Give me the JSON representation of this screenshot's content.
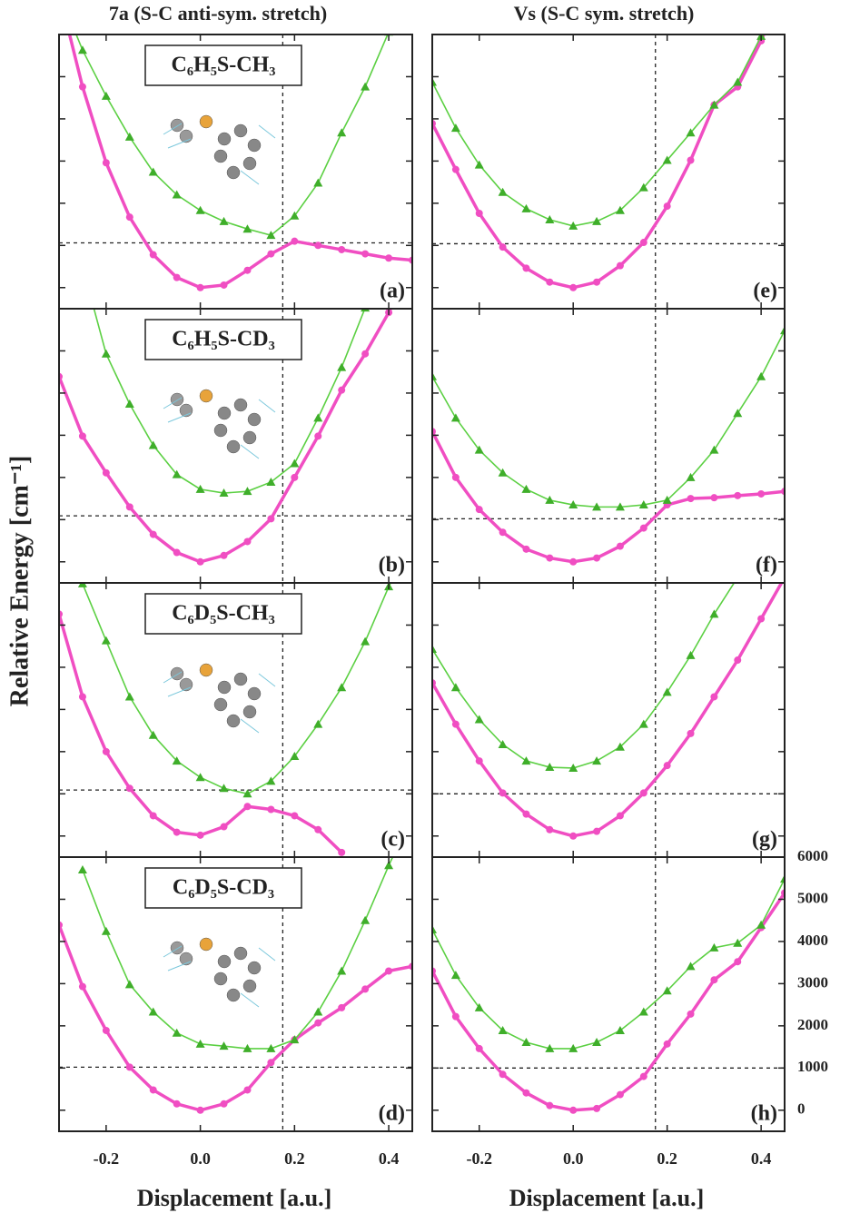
{
  "figure": {
    "column_titles": [
      "7a (S-C anti-sym. stretch)",
      "Vs (S-C sym. stretch)"
    ],
    "ylabel": "Relative Energy [cm⁻¹]",
    "xlabel": "Displacement [a.u.]"
  },
  "chart_data": [
    {
      "type": "line",
      "label": "(a)",
      "molecule": "C₆H₅S-CH₃",
      "x": [
        -0.3,
        -0.25,
        -0.2,
        -0.15,
        -0.1,
        -0.05,
        0,
        0.05,
        0.1,
        0.15,
        0.2,
        0.25,
        0.3,
        0.35,
        0.4,
        0.45
      ],
      "xlim": [
        -0.3,
        0.45
      ],
      "ylim": [
        -500,
        6000
      ],
      "xticks": [
        -0.2,
        {
          "value": 0,
          "label": "0.0"
        },
        0.2,
        0.4
      ],
      "yticks": [
        0,
        1000,
        2000,
        3000,
        4000,
        5000,
        6000
      ],
      "hline": 1060,
      "vline": 0.175,
      "series": [
        {
          "color": "#f04ec2",
          "marker": "circle",
          "values": [
            7000,
            4760,
            2960,
            1670,
            780,
            240,
            0,
            60,
            410,
            800,
            1100,
            1000,
            900,
            800,
            700,
            650
          ]
        },
        {
          "color": "#5cd043",
          "marker": "triangle",
          "values": [
            7000,
            5630,
            4540,
            3570,
            2740,
            2200,
            1830,
            1570,
            1390,
            1240,
            1700,
            2480,
            3670,
            4760,
            6060,
            7500
          ]
        }
      ]
    },
    {
      "type": "line",
      "label": "(b)",
      "molecule": "C₆H₅S-CD₃",
      "x": [
        -0.3,
        -0.25,
        -0.2,
        -0.15,
        -0.1,
        -0.05,
        0,
        0.05,
        0.1,
        0.15,
        0.2,
        0.25,
        0.3,
        0.35,
        0.4,
        0.45
      ],
      "xlim": [
        -0.3,
        0.45
      ],
      "ylim": [
        -500,
        6000
      ],
      "xticks": [
        -0.2,
        {
          "value": 0,
          "label": "0.0"
        },
        0.2,
        0.4
      ],
      "yticks": [
        0,
        1000,
        2000,
        3000,
        4000,
        5000,
        6000
      ],
      "hline": 1090,
      "vline": 0.175,
      "series": [
        {
          "color": "#f04ec2",
          "marker": "circle",
          "values": [
            4390,
            2980,
            2110,
            1300,
            650,
            220,
            0,
            150,
            480,
            1020,
            2000,
            2980,
            4070,
            4930,
            5910,
            7000
          ]
        },
        {
          "color": "#5cd043",
          "marker": "triangle",
          "values": [
            null,
            7000,
            4930,
            3740,
            2760,
            2070,
            1720,
            1630,
            1670,
            1890,
            2330,
            3410,
            4610,
            6020,
            7200,
            null
          ]
        }
      ]
    },
    {
      "type": "line",
      "label": "(c)",
      "molecule": "C₆D₅S-CH₃",
      "x": [
        -0.3,
        -0.25,
        -0.2,
        -0.15,
        -0.1,
        -0.05,
        0,
        0.05,
        0.1,
        0.15,
        0.2,
        0.25,
        0.3,
        0.35,
        0.4,
        0.45
      ],
      "xlim": [
        -0.3,
        0.45
      ],
      "ylim": [
        -500,
        6000
      ],
      "xticks": [
        -0.2,
        {
          "value": 0,
          "label": "0.0"
        },
        0.2,
        0.4
      ],
      "yticks": [
        0,
        1000,
        2000,
        3000,
        4000,
        5000,
        6000
      ],
      "hline": 1090,
      "vline": 0.175,
      "series": [
        {
          "color": "#f04ec2",
          "marker": "circle",
          "values": [
            5260,
            3300,
            2000,
            1130,
            480,
            90,
            20,
            220,
            700,
            630,
            480,
            150,
            -390,
            null,
            null,
            null
          ]
        },
        {
          "color": "#5cd043",
          "marker": "triangle",
          "values": [
            null,
            5980,
            4630,
            3300,
            2390,
            1780,
            1390,
            1130,
            1000,
            1300,
            1890,
            2650,
            3520,
            4610,
            5910,
            7000
          ]
        }
      ]
    },
    {
      "type": "line",
      "label": "(d)",
      "molecule": "C₆D₅S-CD₃",
      "xtick_labels": true,
      "x": [
        -0.3,
        -0.25,
        -0.2,
        -0.15,
        -0.1,
        -0.05,
        0,
        0.05,
        0.1,
        0.15,
        0.2,
        0.25,
        0.3,
        0.35,
        0.4,
        0.45
      ],
      "xlim": [
        -0.3,
        0.45
      ],
      "ylim": [
        -500,
        6000
      ],
      "xticks": [
        -0.2,
        {
          "value": 0,
          "label": "0.0"
        },
        0.2,
        0.4
      ],
      "yticks": [
        0,
        1000,
        2000,
        3000,
        4000,
        5000,
        6000
      ],
      "hline": 1020,
      "vline": 0.175,
      "series": [
        {
          "color": "#f04ec2",
          "marker": "circle",
          "values": [
            4390,
            2930,
            1890,
            1020,
            480,
            150,
            0,
            150,
            480,
            1130,
            1670,
            2070,
            2430,
            2870,
            3300,
            3410
          ]
        },
        {
          "color": "#5cd043",
          "marker": "triangle",
          "values": [
            null,
            5700,
            4240,
            2980,
            2330,
            1830,
            1570,
            1520,
            1460,
            1460,
            1670,
            2330,
            3300,
            4500,
            5800,
            7000
          ]
        }
      ]
    },
    {
      "type": "line",
      "label": "(e)",
      "x": [
        -0.3,
        -0.25,
        -0.2,
        -0.15,
        -0.1,
        -0.05,
        0,
        0.05,
        0.1,
        0.15,
        0.2,
        0.25,
        0.3,
        0.35,
        0.4,
        0.45
      ],
      "xlim": [
        -0.3,
        0.45
      ],
      "ylim": [
        -500,
        6000
      ],
      "xticks": [
        -0.2,
        {
          "value": 0,
          "label": "0.0"
        },
        0.2,
        0.4
      ],
      "yticks": [
        0,
        1000,
        2000,
        3000,
        4000,
        5000,
        6000
      ],
      "hline": 1040,
      "vline": 0.175,
      "series": [
        {
          "color": "#f04ec2",
          "marker": "circle",
          "values": [
            3890,
            2800,
            1760,
            960,
            460,
            130,
            0,
            130,
            520,
            1070,
            1930,
            3020,
            4330,
            4760,
            5850,
            7200
          ]
        },
        {
          "color": "#5cd043",
          "marker": "triangle",
          "values": [
            4870,
            3780,
            2910,
            2260,
            1870,
            1610,
            1460,
            1570,
            1830,
            2370,
            3020,
            3670,
            4330,
            4870,
            5960,
            7200
          ]
        }
      ]
    },
    {
      "type": "line",
      "label": "(f)",
      "x": [
        -0.3,
        -0.25,
        -0.2,
        -0.15,
        -0.1,
        -0.05,
        0,
        0.05,
        0.1,
        0.15,
        0.2,
        0.25,
        0.3,
        0.35,
        0.4,
        0.45
      ],
      "xlim": [
        -0.3,
        0.45
      ],
      "ylim": [
        -500,
        6000
      ],
      "xticks": [
        -0.2,
        {
          "value": 0,
          "label": "0.0"
        },
        0.2,
        0.4
      ],
      "yticks": [
        0,
        1000,
        2000,
        3000,
        4000,
        5000,
        6000
      ],
      "hline": 1020,
      "vline": 0.175,
      "series": [
        {
          "color": "#f04ec2",
          "marker": "circle",
          "values": [
            3090,
            2000,
            1240,
            700,
            300,
            90,
            0,
            90,
            370,
            800,
            1350,
            1500,
            1520,
            1570,
            1610,
            1670
          ]
        },
        {
          "color": "#5cd043",
          "marker": "triangle",
          "values": [
            4390,
            3410,
            2650,
            2110,
            1720,
            1460,
            1350,
            1300,
            1300,
            1350,
            1460,
            2000,
            2650,
            3520,
            4390,
            5480
          ]
        }
      ]
    },
    {
      "type": "line",
      "label": "(g)",
      "x": [
        -0.3,
        -0.25,
        -0.2,
        -0.15,
        -0.1,
        -0.05,
        0,
        0.05,
        0.1,
        0.15,
        0.2,
        0.25,
        0.3,
        0.35,
        0.4,
        0.45
      ],
      "xlim": [
        -0.3,
        0.45
      ],
      "ylim": [
        -500,
        6000
      ],
      "xticks": [
        -0.2,
        {
          "value": 0,
          "label": "0.0"
        },
        0.2,
        0.4
      ],
      "yticks": [
        0,
        1000,
        2000,
        3000,
        4000,
        5000,
        6000
      ],
      "hline": 1000,
      "vline": 0.175,
      "series": [
        {
          "color": "#f04ec2",
          "marker": "circle",
          "values": [
            3630,
            2650,
            1780,
            1020,
            520,
            150,
            0,
            110,
            480,
            1020,
            1670,
            2430,
            3300,
            4170,
            5150,
            6130
          ]
        },
        {
          "color": "#5cd043",
          "marker": "triangle",
          "values": [
            4430,
            3520,
            2760,
            2170,
            1780,
            1630,
            1610,
            1780,
            2110,
            2650,
            3410,
            4280,
            5260,
            6130,
            7000,
            null
          ]
        }
      ]
    },
    {
      "type": "line",
      "label": "(h)",
      "xtick_labels": true,
      "ytick_labels": "right",
      "x": [
        -0.3,
        -0.25,
        -0.2,
        -0.15,
        -0.1,
        -0.05,
        0,
        0.05,
        0.1,
        0.15,
        0.2,
        0.25,
        0.3,
        0.35,
        0.4,
        0.45
      ],
      "xlim": [
        -0.3,
        0.45
      ],
      "ylim": [
        -500,
        6000
      ],
      "xticks": [
        -0.2,
        {
          "value": 0,
          "label": "0.0"
        },
        0.2,
        0.4
      ],
      "yticks": [
        0,
        1000,
        2000,
        3000,
        4000,
        5000,
        6000
      ],
      "hline": 1000,
      "vline": 0.175,
      "series": [
        {
          "color": "#f04ec2",
          "marker": "circle",
          "values": [
            3300,
            2220,
            1460,
            850,
            410,
            110,
            0,
            40,
            370,
            800,
            1570,
            2280,
            3090,
            3520,
            4330,
            5150
          ]
        },
        {
          "color": "#5cd043",
          "marker": "triangle",
          "values": [
            4280,
            3200,
            2430,
            1890,
            1610,
            1460,
            1460,
            1610,
            1890,
            2330,
            2830,
            3410,
            3850,
            3960,
            4390,
            5480
          ]
        }
      ]
    }
  ]
}
